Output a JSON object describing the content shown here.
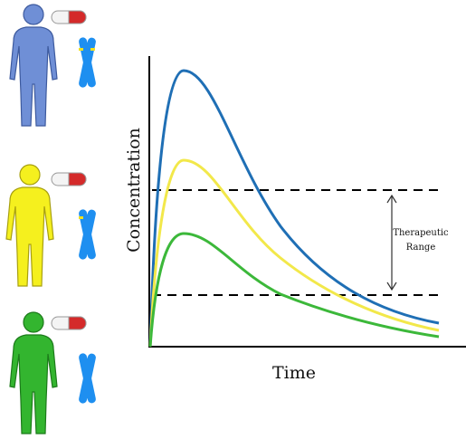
{
  "axes": {
    "y_label": "Concentration",
    "x_label": "Time"
  },
  "annotation": {
    "line1": "Therapeutic",
    "line2": "Range"
  }
}
